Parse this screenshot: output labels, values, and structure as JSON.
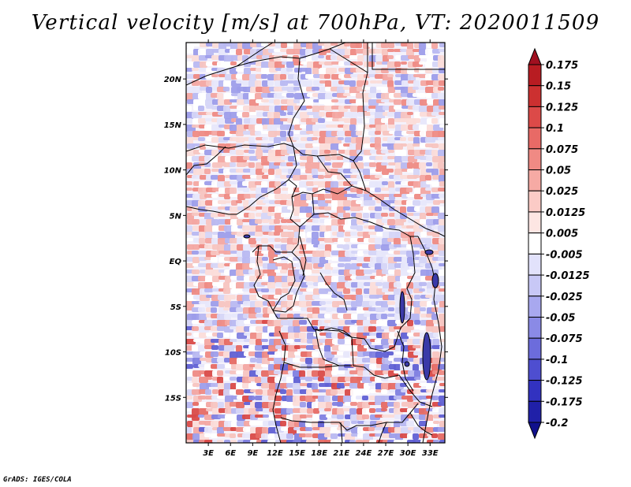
{
  "title": "Vertical velocity [m/s] at 700hPa, VT: 2020011509",
  "footer": "GrADS: IGES/COLA",
  "map": {
    "lon_range": [
      0,
      35
    ],
    "lat_range": [
      -20,
      24
    ],
    "variable": "vertical velocity",
    "level": "700hPa",
    "units": "m/s",
    "lon_ticks": [
      "3E",
      "6E",
      "9E",
      "12E",
      "15E",
      "18E",
      "21E",
      "24E",
      "27E",
      "30E",
      "33E"
    ],
    "lat_ticks": [
      "20N",
      "15N",
      "10N",
      "5N",
      "EQ",
      "5S",
      "10S",
      "15S"
    ]
  },
  "colorbar": {
    "labels": [
      "0.175",
      "0.15",
      "0.125",
      "0.1",
      "0.075",
      "0.05",
      "0.025",
      "0.0125",
      "0.005",
      "-0.005",
      "-0.0125",
      "-0.025",
      "-0.05",
      "-0.075",
      "-0.1",
      "-0.125",
      "-0.175",
      "-0.2"
    ],
    "colors": [
      "#a01020",
      "#b81c22",
      "#cc3030",
      "#dc4a48",
      "#e86a66",
      "#f08a84",
      "#f6aaa4",
      "#fbcbc6",
      "#fde6e3",
      "#ffffff",
      "#e2e2fb",
      "#c8c8f6",
      "#a8a8ef",
      "#8a8ae6",
      "#6c6cdc",
      "#4e4ed0",
      "#3232c0",
      "#2020a8",
      "#10108c"
    ]
  }
}
